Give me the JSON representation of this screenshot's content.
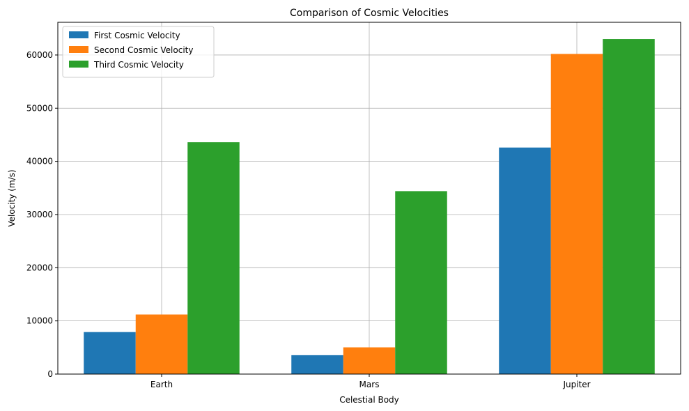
{
  "chart_data": {
    "type": "bar",
    "title": "Comparison of Cosmic Velocities",
    "xlabel": "Celestial Body",
    "ylabel": "Velocity (m/s)",
    "categories": [
      "Earth",
      "Mars",
      "Jupiter"
    ],
    "series": [
      {
        "name": "First Cosmic Velocity",
        "values": [
          7900,
          3550,
          42600
        ],
        "color": "#1f77b4"
      },
      {
        "name": "Second Cosmic Velocity",
        "values": [
          11200,
          5030,
          60200
        ],
        "color": "#ff7f0e"
      },
      {
        "name": "Third Cosmic Velocity",
        "values": [
          43600,
          34400,
          63000
        ],
        "color": "#2ca02c"
      }
    ],
    "ylim": [
      0,
      66150
    ],
    "yticks": [
      0,
      10000,
      20000,
      30000,
      40000,
      50000,
      60000
    ],
    "grid": true,
    "legend_position": "top-left"
  }
}
